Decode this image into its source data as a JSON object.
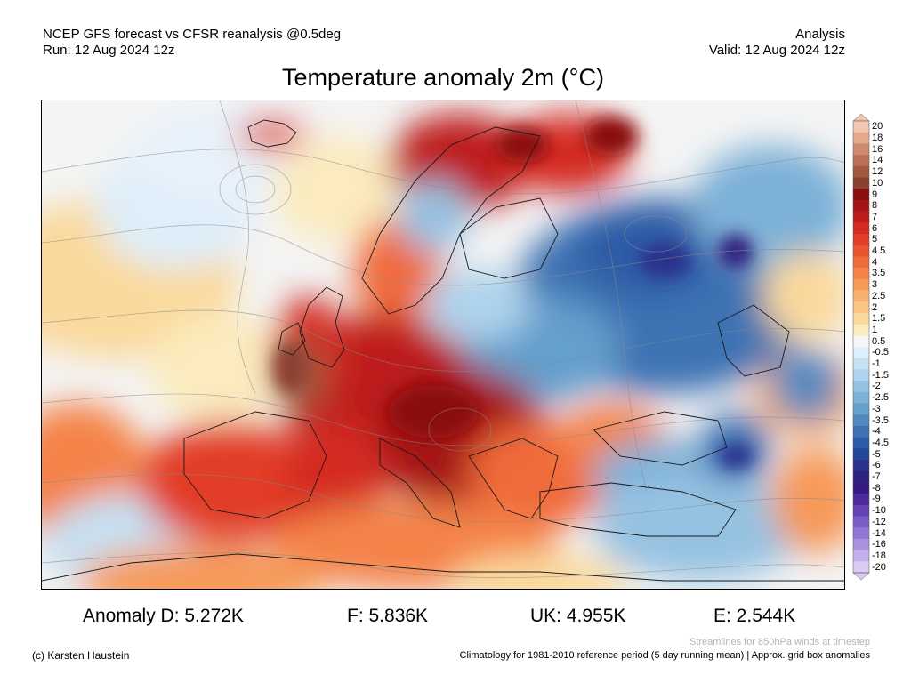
{
  "header": {
    "left_line1": "NCEP GFS forecast vs CFSR reanalysis @0.5deg",
    "left_line2": "Run: 12 Aug 2024 12z",
    "right_line1": "Analysis",
    "right_line2": "Valid: 12 Aug 2024 12z"
  },
  "title": "Temperature anomaly 2m (°C)",
  "colorbar": {
    "labels": [
      "20",
      "18",
      "16",
      "14",
      "12",
      "10",
      "9",
      "8",
      "7",
      "6",
      "5",
      "4.5",
      "4",
      "3.5",
      "3",
      "2.5",
      "2",
      "1.5",
      "1",
      "0.5",
      "-0.5",
      "-1",
      "-1.5",
      "-2",
      "-2.5",
      "-3",
      "-3.5",
      "-4",
      "-4.5",
      "-5",
      "-6",
      "-7",
      "-8",
      "-9",
      "-10",
      "-12",
      "-14",
      "-16",
      "-18",
      "-20"
    ],
    "colors": [
      "#f2c7b0",
      "#e3a98c",
      "#d08b6e",
      "#bb7055",
      "#a25840",
      "#8c4030",
      "#8a0f0f",
      "#a51515",
      "#be1c1c",
      "#d42a22",
      "#e23d26",
      "#ea5530",
      "#f06b3a",
      "#f4834a",
      "#f69a5a",
      "#f8b06e",
      "#f9c584",
      "#fad99c",
      "#fbebbd",
      "#f6f6f6",
      "#deeefa",
      "#c6e1f3",
      "#aed3ec",
      "#95c2e2",
      "#7db1d7",
      "#659fcc",
      "#5089c0",
      "#3e72b3",
      "#2e5ca6",
      "#25479a",
      "#29338c",
      "#30237e",
      "#381a85",
      "#4d2a9e",
      "#6343b5",
      "#7b5dc8",
      "#9377d5",
      "#aa92e0",
      "#c2aeea",
      "#d9cbf3"
    ]
  },
  "anomalies": {
    "d": "Anomaly D: 5.272K",
    "f": "F: 5.836K",
    "uk": "UK: 4.955K",
    "e": "E: 2.544K"
  },
  "footer": {
    "copyright": "(c) Karsten Haustein",
    "streamlines": "Streamlines for 850hPa winds at timestep",
    "climatology": "Climatology for 1981-2010 reference period (5 day running mean) | Approx. grid box anomalies"
  }
}
